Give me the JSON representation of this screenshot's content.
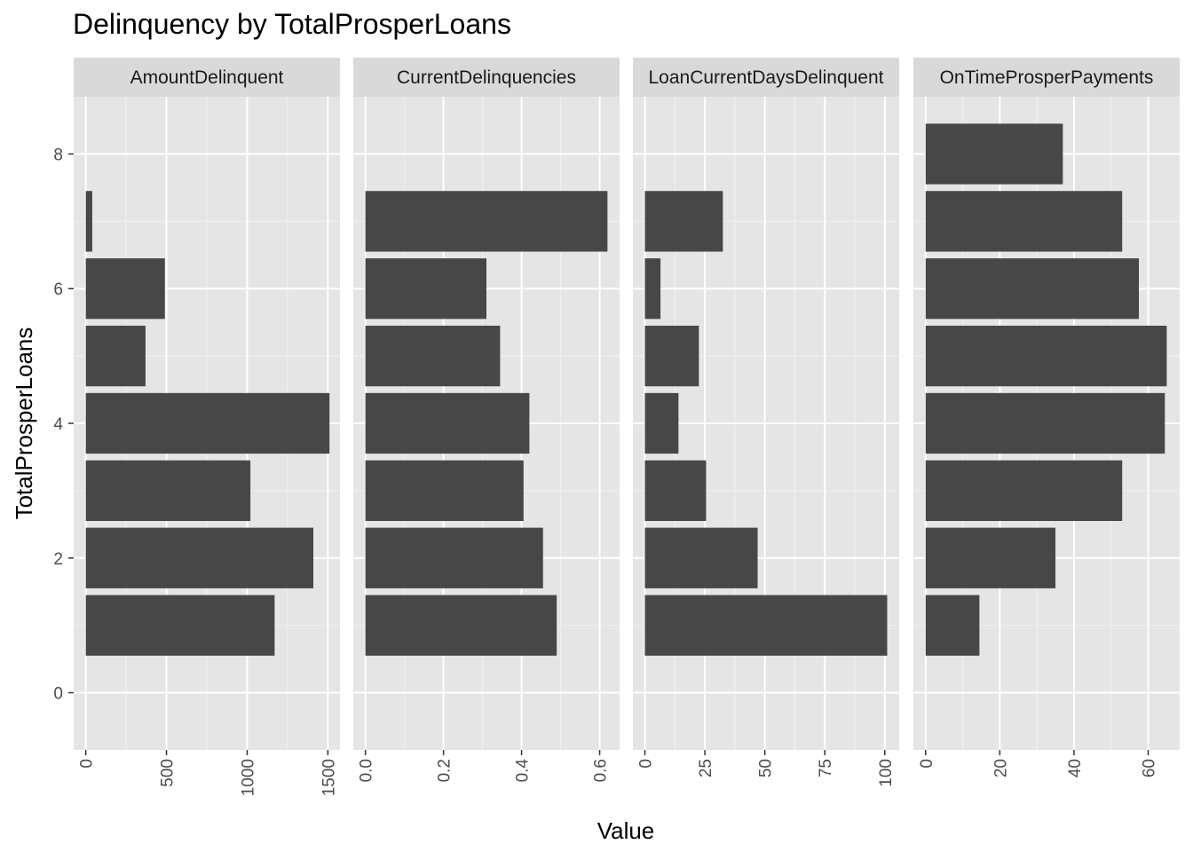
{
  "chart_data": {
    "type": "bar",
    "orientation": "horizontal",
    "title": "Delinquency by TotalProsperLoans",
    "xlabel": "Value",
    "ylabel": "TotalProsperLoans",
    "y_values": [
      1,
      2,
      3,
      4,
      5,
      6,
      7,
      8
    ],
    "y_ticks": [
      "0",
      "2",
      "4",
      "6",
      "8"
    ],
    "ylim": [
      -0.85,
      8.85
    ],
    "grid": true,
    "bar_color": "#474747",
    "panel_background": "#e5e5e5",
    "strip_background": "#d9d9d9",
    "facets": [
      {
        "name": "AmountDelinquent",
        "xlim": [
          -75,
          1575
        ],
        "x_ticks": [
          0,
          500,
          1000,
          1500
        ],
        "x_tick_labels": [
          "0",
          "500",
          "1000",
          "1500"
        ],
        "values": [
          1170,
          1410,
          1020,
          1510,
          370,
          490,
          40,
          null
        ]
      },
      {
        "name": "CurrentDelinquencies",
        "xlim": [
          -0.031,
          0.651
        ],
        "x_ticks": [
          0.0,
          0.2,
          0.4,
          0.6
        ],
        "x_tick_labels": [
          "0.0",
          "0.2",
          "0.4",
          "0.6"
        ],
        "values": [
          0.49,
          0.455,
          0.405,
          0.42,
          0.345,
          0.31,
          0.62,
          null
        ]
      },
      {
        "name": "LoanCurrentDaysDelinquent",
        "xlim": [
          -5,
          106
        ],
        "x_ticks": [
          0,
          25,
          50,
          75,
          100
        ],
        "x_tick_labels": [
          "0",
          "25",
          "50",
          "75",
          "100"
        ],
        "values": [
          101,
          47,
          25.5,
          14,
          22.5,
          6.5,
          32.5,
          null
        ]
      },
      {
        "name": "OnTimeProsperPayments",
        "xlim": [
          -3.3,
          68.5
        ],
        "x_ticks": [
          0,
          20,
          40,
          60
        ],
        "x_tick_labels": [
          "0",
          "20",
          "40",
          "60"
        ],
        "values": [
          14.5,
          35,
          53,
          64.5,
          65,
          57.5,
          53,
          37
        ]
      }
    ]
  }
}
